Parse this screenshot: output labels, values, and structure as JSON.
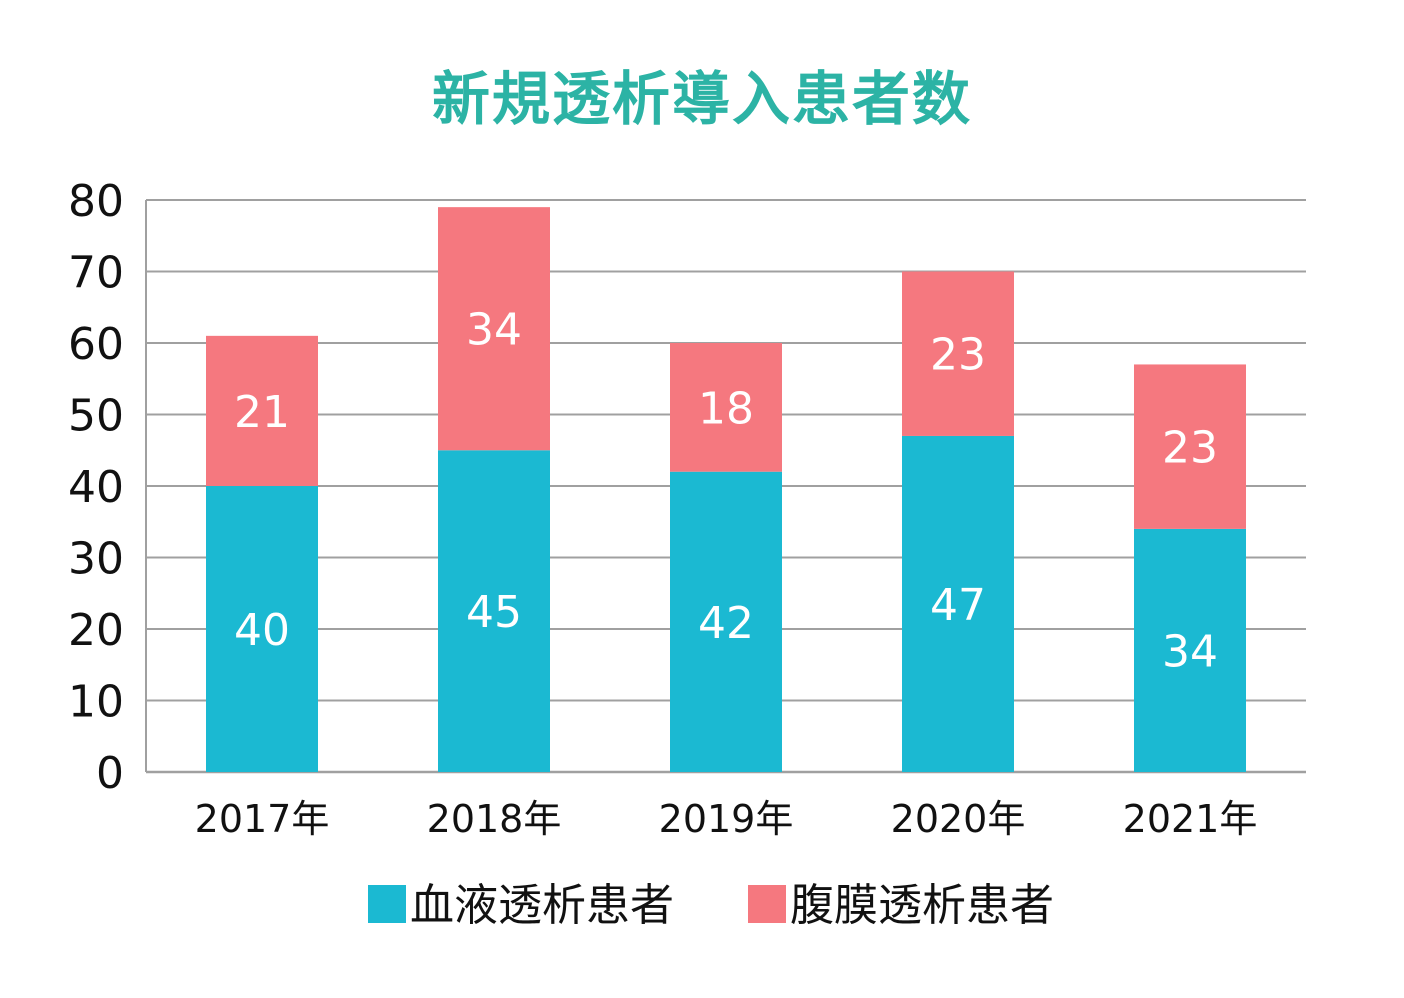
{
  "colors": {
    "title": "#2cb3a5",
    "hemodialysis": "#1bb9d2",
    "peritoneal": "#f5787f",
    "grid": "#a0a0a0"
  },
  "chart_data": {
    "type": "bar",
    "stacked": true,
    "title": "新規透析導入患者数",
    "xlabel": "",
    "ylabel": "",
    "categories": [
      "2017年",
      "2018年",
      "2019年",
      "2020年",
      "2021年"
    ],
    "series": [
      {
        "name": "血液透析患者",
        "values": [
          40,
          45,
          42,
          47,
          34
        ]
      },
      {
        "name": "腹膜透析患者",
        "values": [
          21,
          34,
          18,
          23,
          23
        ]
      }
    ],
    "ylim": [
      0,
      80
    ],
    "yticks": [
      0,
      10,
      20,
      30,
      40,
      50,
      60,
      70,
      80
    ],
    "grid": true,
    "legend": "bottom-center"
  }
}
